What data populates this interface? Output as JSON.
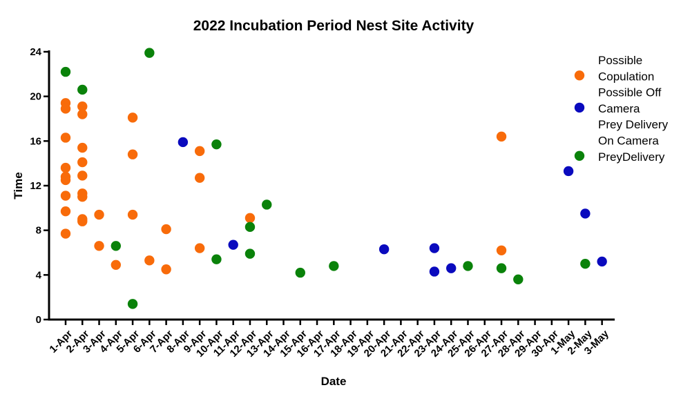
{
  "chart_data": {
    "type": "scatter",
    "title": "2022 Incubation Period Nest Site Activity",
    "xlabel": "Date",
    "ylabel": "Time",
    "categories": [
      "1-Apr",
      "2-Apr",
      "3-Apr",
      "4-Apr",
      "5-Apr",
      "6-Apr",
      "7-Apr",
      "8-Apr",
      "9-Apr",
      "10-Apr",
      "11-Apr",
      "12-Apr",
      "13-Apr",
      "14-Apr",
      "15-Apr",
      "16-Apr",
      "17-Apr",
      "18-Apr",
      "19-Apr",
      "20-Apr",
      "21-Apr",
      "22-Apr",
      "23-Apr",
      "24-Apr",
      "25-Apr",
      "26-Apr",
      "27-Apr",
      "28-Apr",
      "29-Apr",
      "30-Apr",
      "1-May",
      "2-May",
      "3-May"
    ],
    "ylim": [
      0,
      24
    ],
    "yticks": [
      0,
      4,
      8,
      12,
      16,
      20,
      24
    ],
    "grid": false,
    "legend_position": "top-right",
    "series": [
      {
        "name_lines": [
          "Possible",
          "Copulation"
        ],
        "color": "#F86B0A",
        "points": [
          {
            "x": "1-Apr",
            "y": 19.4
          },
          {
            "x": "1-Apr",
            "y": 18.9
          },
          {
            "x": "1-Apr",
            "y": 16.3
          },
          {
            "x": "1-Apr",
            "y": 13.6
          },
          {
            "x": "1-Apr",
            "y": 12.8
          },
          {
            "x": "1-Apr",
            "y": 12.5
          },
          {
            "x": "1-Apr",
            "y": 11.1
          },
          {
            "x": "1-Apr",
            "y": 9.7
          },
          {
            "x": "1-Apr",
            "y": 7.7
          },
          {
            "x": "2-Apr",
            "y": 19.1
          },
          {
            "x": "2-Apr",
            "y": 18.4
          },
          {
            "x": "2-Apr",
            "y": 15.4
          },
          {
            "x": "2-Apr",
            "y": 14.1
          },
          {
            "x": "2-Apr",
            "y": 12.9
          },
          {
            "x": "2-Apr",
            "y": 11.3
          },
          {
            "x": "2-Apr",
            "y": 11.0
          },
          {
            "x": "2-Apr",
            "y": 9.0
          },
          {
            "x": "2-Apr",
            "y": 8.8
          },
          {
            "x": "3-Apr",
            "y": 9.4
          },
          {
            "x": "3-Apr",
            "y": 6.6
          },
          {
            "x": "4-Apr",
            "y": 4.9
          },
          {
            "x": "5-Apr",
            "y": 18.1
          },
          {
            "x": "5-Apr",
            "y": 14.8
          },
          {
            "x": "5-Apr",
            "y": 9.4
          },
          {
            "x": "6-Apr",
            "y": 5.3
          },
          {
            "x": "7-Apr",
            "y": 8.1
          },
          {
            "x": "7-Apr",
            "y": 4.5
          },
          {
            "x": "9-Apr",
            "y": 15.1
          },
          {
            "x": "9-Apr",
            "y": 12.7
          },
          {
            "x": "9-Apr",
            "y": 6.4
          },
          {
            "x": "12-Apr",
            "y": 9.1
          },
          {
            "x": "27-Apr",
            "y": 16.4
          },
          {
            "x": "27-Apr",
            "y": 6.2
          }
        ]
      },
      {
        "name_lines": [
          "Possible Off",
          "Camera",
          "Prey Delivery"
        ],
        "color": "#0A0ABE",
        "points": [
          {
            "x": "8-Apr",
            "y": 15.9
          },
          {
            "x": "11-Apr",
            "y": 6.7
          },
          {
            "x": "20-Apr",
            "y": 6.3
          },
          {
            "x": "23-Apr",
            "y": 6.4
          },
          {
            "x": "23-Apr",
            "y": 4.3
          },
          {
            "x": "24-Apr",
            "y": 4.6
          },
          {
            "x": "1-May",
            "y": 13.3
          },
          {
            "x": "2-May",
            "y": 9.5
          },
          {
            "x": "3-May",
            "y": 5.2
          }
        ]
      },
      {
        "name_lines": [
          "On Camera",
          "PreyDelivery"
        ],
        "color": "#0A820A",
        "points": [
          {
            "x": "1-Apr",
            "y": 22.2
          },
          {
            "x": "2-Apr",
            "y": 20.6
          },
          {
            "x": "4-Apr",
            "y": 6.6
          },
          {
            "x": "5-Apr",
            "y": 1.4
          },
          {
            "x": "6-Apr",
            "y": 23.9
          },
          {
            "x": "10-Apr",
            "y": 15.7
          },
          {
            "x": "10-Apr",
            "y": 5.4
          },
          {
            "x": "12-Apr",
            "y": 8.3
          },
          {
            "x": "12-Apr",
            "y": 5.9
          },
          {
            "x": "13-Apr",
            "y": 10.3
          },
          {
            "x": "15-Apr",
            "y": 4.2
          },
          {
            "x": "17-Apr",
            "y": 4.8
          },
          {
            "x": "25-Apr",
            "y": 4.8
          },
          {
            "x": "27-Apr",
            "y": 4.6
          },
          {
            "x": "28-Apr",
            "y": 3.6
          },
          {
            "x": "2-May",
            "y": 5.0
          }
        ]
      }
    ]
  }
}
